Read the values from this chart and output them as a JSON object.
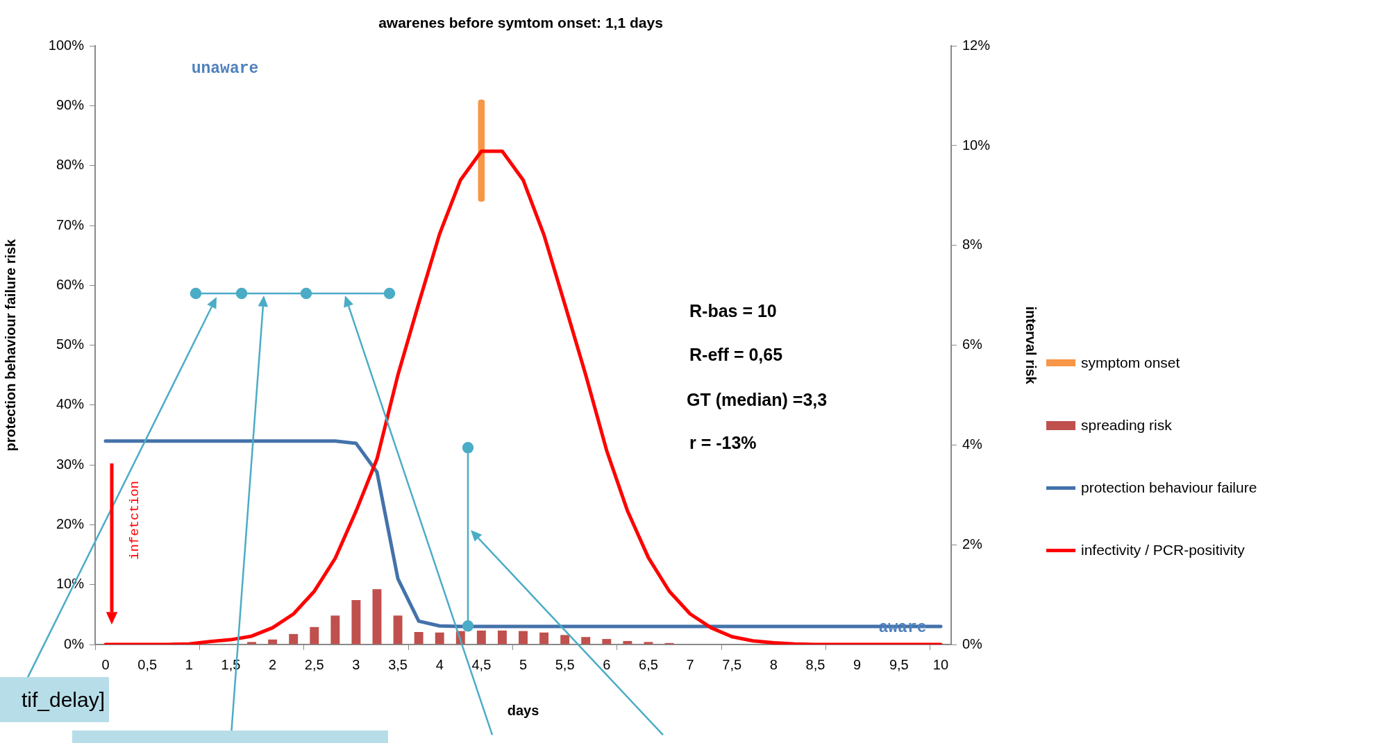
{
  "chart_data": {
    "type": "bar",
    "title": "awarenes before symtom onset: 1,1 days",
    "xlabel": "days",
    "ylabel": "protection behaviour failure risk",
    "y2label": "interval risk",
    "categories": [
      "0",
      null,
      "0,5",
      null,
      "1",
      null,
      "1,5",
      null,
      "2",
      null,
      "2,5",
      null,
      "3",
      null,
      "3,5",
      null,
      "4",
      null,
      "4,5",
      null,
      "5",
      null,
      "5,5",
      null,
      "6",
      null,
      "6,5",
      null,
      "7",
      null,
      "7,5",
      null,
      "8",
      null,
      "8,5",
      null,
      "9",
      null,
      "9,5",
      null,
      "10"
    ],
    "series": [
      {
        "name": "symptom onset",
        "color": "#f79646",
        "values": [
          null,
          null,
          null,
          null,
          null,
          null,
          null,
          null,
          null,
          null,
          null,
          null,
          null,
          null,
          null,
          null,
          null,
          null,
          17,
          null,
          null,
          null,
          null,
          null,
          null,
          null,
          null,
          null,
          null,
          null,
          null,
          null,
          null,
          null,
          null,
          null,
          null,
          null,
          null,
          null,
          null
        ],
        "base": [
          null,
          null,
          null,
          null,
          null,
          null,
          null,
          null,
          null,
          null,
          null,
          null,
          null,
          null,
          null,
          null,
          null,
          null,
          74,
          null,
          null,
          null,
          null,
          null,
          null,
          null,
          null,
          null,
          null,
          null,
          null,
          null,
          null,
          null,
          null,
          null,
          null,
          null,
          null,
          null,
          null
        ]
      },
      {
        "name": "spreading risk",
        "axis": "y2",
        "color": "#c0504d",
        "values": [
          0,
          0,
          0,
          0,
          0,
          0,
          null,
          0.05,
          0.1,
          0.21,
          0.35,
          0.58,
          0.89,
          1.11,
          0.58,
          0.25,
          0.24,
          0.27,
          0.28,
          0.28,
          0.27,
          0.24,
          0.19,
          0.15,
          0.11,
          0.07,
          0.05,
          0.03,
          null,
          0,
          0,
          0,
          0,
          0,
          0,
          0,
          0,
          0,
          0,
          0,
          0
        ]
      },
      {
        "name": "protection behaviour failure",
        "type": "line",
        "color": "#4372aa",
        "values": [
          34,
          34,
          34,
          34,
          34,
          34,
          34,
          34,
          34,
          34,
          34,
          34,
          33.6,
          28.8,
          11,
          3.9,
          3.1,
          3,
          3,
          3,
          3,
          3,
          3,
          3,
          3,
          3,
          3,
          3,
          3,
          3,
          3,
          3,
          3,
          3,
          3,
          3,
          3,
          3,
          3,
          3,
          3
        ]
      },
      {
        "name": "infectivity / PCR-positivity",
        "type": "line",
        "color": "#ff0000",
        "values": [
          0,
          0,
          0,
          0,
          0.1,
          0.5,
          0.8,
          1.4,
          2.8,
          5.1,
          8.9,
          14.4,
          22.3,
          31,
          45,
          57,
          68.6,
          77.6,
          82.4,
          82.4,
          77.6,
          68.4,
          56.8,
          45,
          32.4,
          22.3,
          14.5,
          8.9,
          5.1,
          2.8,
          1.3,
          0.6,
          0.3,
          0.1,
          0,
          0,
          0,
          0,
          0,
          0,
          0
        ]
      }
    ],
    "ylim": [
      0,
      100
    ],
    "yticks": [
      {
        "value": 0,
        "label": "0%"
      },
      {
        "value": 10,
        "label": "10%"
      },
      {
        "value": 20,
        "label": "20%"
      },
      {
        "value": 30,
        "label": "30%"
      },
      {
        "value": 40,
        "label": "40%"
      },
      {
        "value": 50,
        "label": "50%"
      },
      {
        "value": 60,
        "label": "60%"
      },
      {
        "value": 70,
        "label": "70%"
      },
      {
        "value": 80,
        "label": "80%"
      },
      {
        "value": 90,
        "label": "90%"
      },
      {
        "value": 100,
        "label": "100%"
      }
    ],
    "y2lim": [
      0,
      12
    ],
    "y2ticks": [
      {
        "value": 0,
        "label": "0%"
      },
      {
        "value": 2,
        "label": "2%"
      },
      {
        "value": 4,
        "label": "4%"
      },
      {
        "value": 6,
        "label": "6%"
      },
      {
        "value": 8,
        "label": "8%"
      },
      {
        "value": 10,
        "label": "10%"
      },
      {
        "value": 12,
        "label": "12%"
      }
    ],
    "grid": false,
    "legend": "right",
    "marker": "none",
    "line_style": "solid",
    "annotations": [
      "unaware",
      "aware",
      "infetction",
      "R-bas = 10",
      "R-eff = 0,65",
      "GT (median) =3,3",
      "r = -13%",
      "tif_delay]"
    ]
  }
}
